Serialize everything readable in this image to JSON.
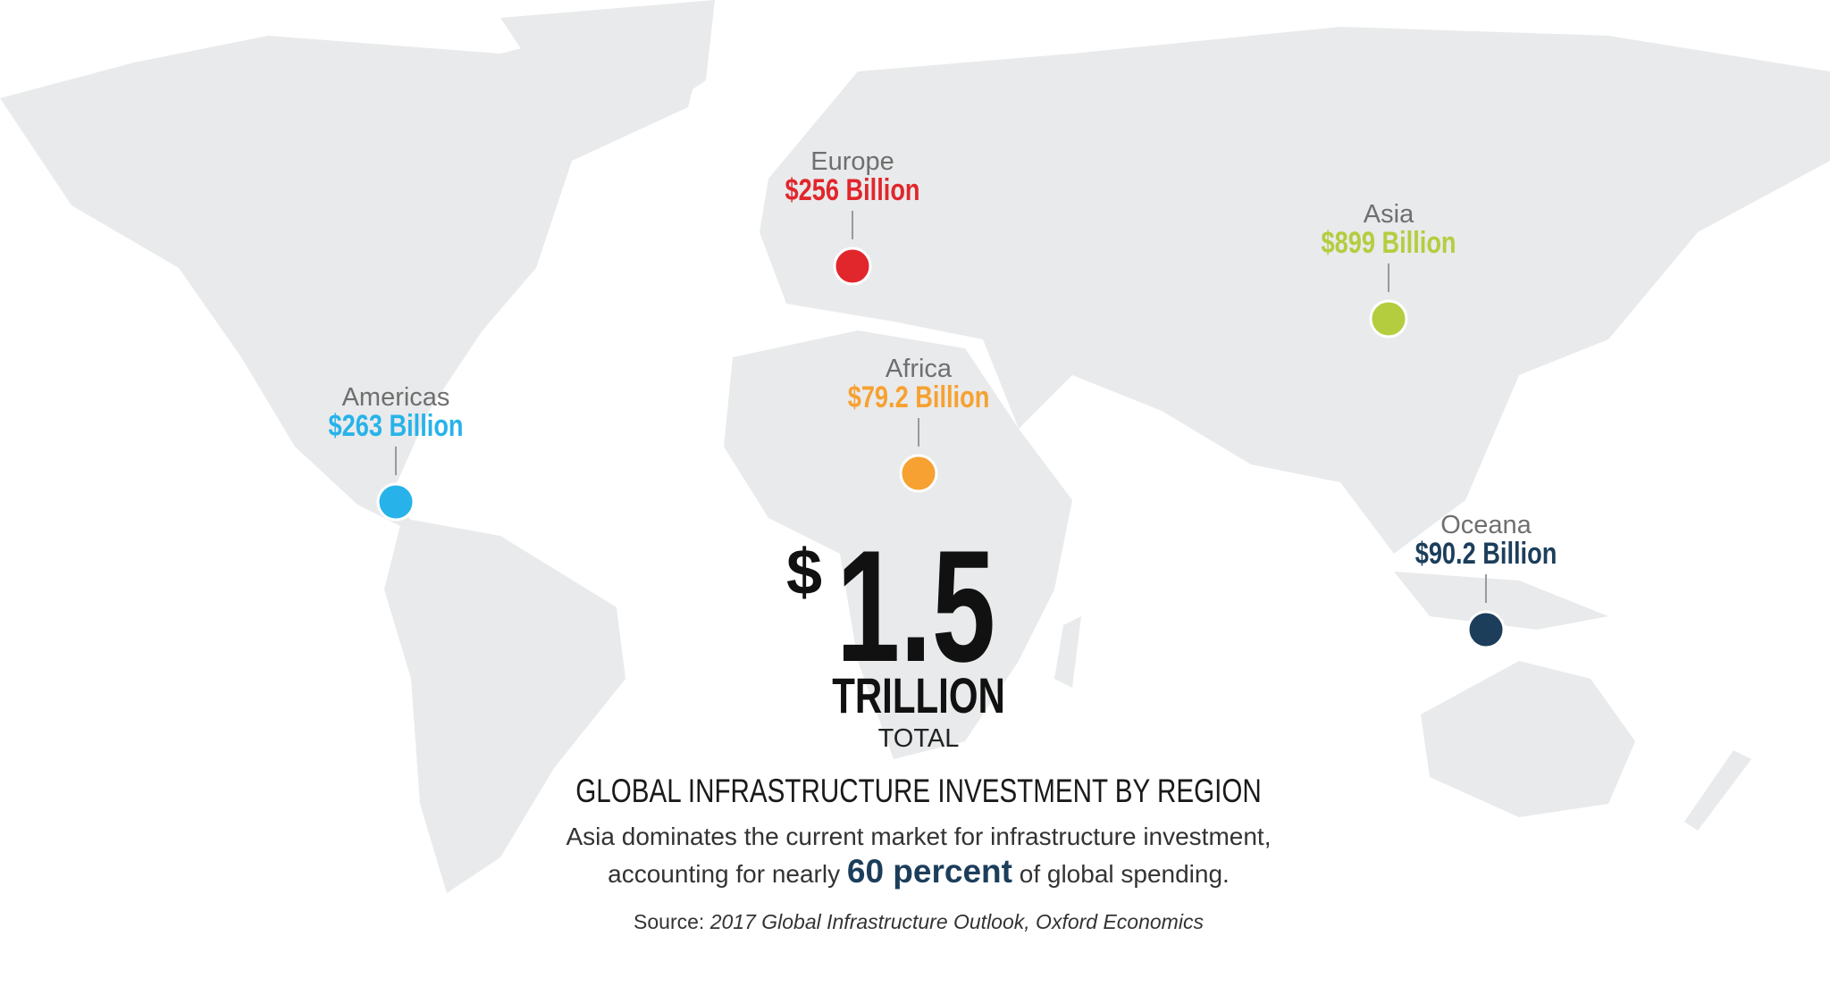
{
  "regions": [
    {
      "name": "Europe",
      "value": "$256 Billion",
      "color": "#e1262c"
    },
    {
      "name": "Asia",
      "value": "$899 Billion",
      "color": "#b3cd3f"
    },
    {
      "name": "Americas",
      "value": "$263 Billion",
      "color": "#27b3ea"
    },
    {
      "name": "Africa",
      "value": "$79.2 Billion",
      "color": "#f6a131"
    },
    {
      "name": "Oceana",
      "value": "$90.2 Billion",
      "color": "#1c3e5b"
    }
  ],
  "total": {
    "currency": "$",
    "amount": "1.5",
    "unit": "TRILLION",
    "label": "TOTAL"
  },
  "title": "GLOBAL INFRASTRUCTURE INVESTMENT BY REGION",
  "subtitle": {
    "line1": "Asia dominates the current market for infrastructure investment,",
    "line2_start": "accounting for nearly ",
    "highlight": "60 percent",
    "line2_end": " of global spending."
  },
  "source": {
    "prefix": "Source: ",
    "text": "2017 Global Infrastructure Outlook, Oxford Economics"
  }
}
